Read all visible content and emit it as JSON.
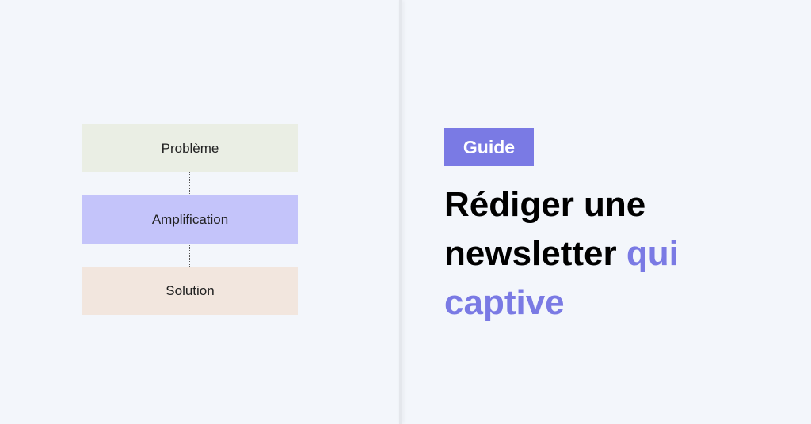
{
  "diagram": {
    "steps": [
      {
        "label": "Problème",
        "color": "#eaeee4"
      },
      {
        "label": "Amplification",
        "color": "#c4c4fa"
      },
      {
        "label": "Solution",
        "color": "#f2e6de"
      }
    ]
  },
  "badge": {
    "label": "Guide",
    "color": "#7a7ae4"
  },
  "title": {
    "line1": "Rédiger une",
    "line2": "newsletter",
    "highlight1": "qui",
    "highlight2": "captive",
    "accent": "#7a7ae4"
  }
}
